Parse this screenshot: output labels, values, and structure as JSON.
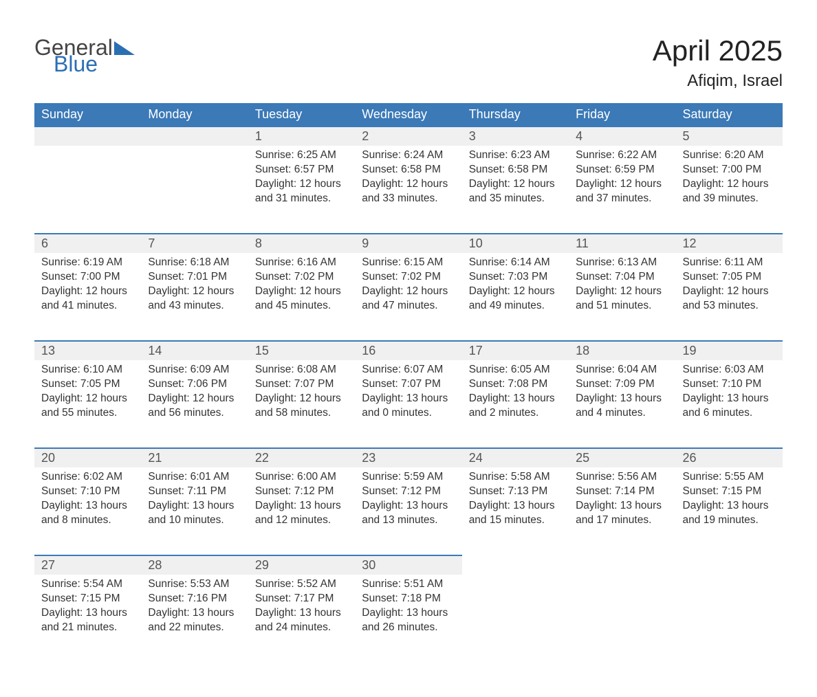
{
  "logo": {
    "text1": "General",
    "text2": "Blue",
    "color_general": "#444444",
    "color_blue": "#2b6fb3",
    "flag_color": "#2b6fb3"
  },
  "title": "April 2025",
  "subtitle": "Afiqim, Israel",
  "colors": {
    "header_bg": "#3b79b7",
    "header_text": "#ffffff",
    "daynum_bg": "#f0f0f0",
    "day_border": "#3b79b7",
    "body_text": "#333333",
    "page_bg": "#ffffff"
  },
  "fontsize": {
    "title": 42,
    "subtitle": 24,
    "dayheader": 18,
    "daynum": 18,
    "body": 15.5
  },
  "day_headers": [
    "Sunday",
    "Monday",
    "Tuesday",
    "Wednesday",
    "Thursday",
    "Friday",
    "Saturday"
  ],
  "weeks": [
    [
      null,
      null,
      {
        "n": "1",
        "sunrise": "6:25 AM",
        "sunset": "6:57 PM",
        "dl1": "12 hours",
        "dl2": "and 31 minutes."
      },
      {
        "n": "2",
        "sunrise": "6:24 AM",
        "sunset": "6:58 PM",
        "dl1": "12 hours",
        "dl2": "and 33 minutes."
      },
      {
        "n": "3",
        "sunrise": "6:23 AM",
        "sunset": "6:58 PM",
        "dl1": "12 hours",
        "dl2": "and 35 minutes."
      },
      {
        "n": "4",
        "sunrise": "6:22 AM",
        "sunset": "6:59 PM",
        "dl1": "12 hours",
        "dl2": "and 37 minutes."
      },
      {
        "n": "5",
        "sunrise": "6:20 AM",
        "sunset": "7:00 PM",
        "dl1": "12 hours",
        "dl2": "and 39 minutes."
      }
    ],
    [
      {
        "n": "6",
        "sunrise": "6:19 AM",
        "sunset": "7:00 PM",
        "dl1": "12 hours",
        "dl2": "and 41 minutes."
      },
      {
        "n": "7",
        "sunrise": "6:18 AM",
        "sunset": "7:01 PM",
        "dl1": "12 hours",
        "dl2": "and 43 minutes."
      },
      {
        "n": "8",
        "sunrise": "6:16 AM",
        "sunset": "7:02 PM",
        "dl1": "12 hours",
        "dl2": "and 45 minutes."
      },
      {
        "n": "9",
        "sunrise": "6:15 AM",
        "sunset": "7:02 PM",
        "dl1": "12 hours",
        "dl2": "and 47 minutes."
      },
      {
        "n": "10",
        "sunrise": "6:14 AM",
        "sunset": "7:03 PM",
        "dl1": "12 hours",
        "dl2": "and 49 minutes."
      },
      {
        "n": "11",
        "sunrise": "6:13 AM",
        "sunset": "7:04 PM",
        "dl1": "12 hours",
        "dl2": "and 51 minutes."
      },
      {
        "n": "12",
        "sunrise": "6:11 AM",
        "sunset": "7:05 PM",
        "dl1": "12 hours",
        "dl2": "and 53 minutes."
      }
    ],
    [
      {
        "n": "13",
        "sunrise": "6:10 AM",
        "sunset": "7:05 PM",
        "dl1": "12 hours",
        "dl2": "and 55 minutes."
      },
      {
        "n": "14",
        "sunrise": "6:09 AM",
        "sunset": "7:06 PM",
        "dl1": "12 hours",
        "dl2": "and 56 minutes."
      },
      {
        "n": "15",
        "sunrise": "6:08 AM",
        "sunset": "7:07 PM",
        "dl1": "12 hours",
        "dl2": "and 58 minutes."
      },
      {
        "n": "16",
        "sunrise": "6:07 AM",
        "sunset": "7:07 PM",
        "dl1": "13 hours",
        "dl2": "and 0 minutes."
      },
      {
        "n": "17",
        "sunrise": "6:05 AM",
        "sunset": "7:08 PM",
        "dl1": "13 hours",
        "dl2": "and 2 minutes."
      },
      {
        "n": "18",
        "sunrise": "6:04 AM",
        "sunset": "7:09 PM",
        "dl1": "13 hours",
        "dl2": "and 4 minutes."
      },
      {
        "n": "19",
        "sunrise": "6:03 AM",
        "sunset": "7:10 PM",
        "dl1": "13 hours",
        "dl2": "and 6 minutes."
      }
    ],
    [
      {
        "n": "20",
        "sunrise": "6:02 AM",
        "sunset": "7:10 PM",
        "dl1": "13 hours",
        "dl2": "and 8 minutes."
      },
      {
        "n": "21",
        "sunrise": "6:01 AM",
        "sunset": "7:11 PM",
        "dl1": "13 hours",
        "dl2": "and 10 minutes."
      },
      {
        "n": "22",
        "sunrise": "6:00 AM",
        "sunset": "7:12 PM",
        "dl1": "13 hours",
        "dl2": "and 12 minutes."
      },
      {
        "n": "23",
        "sunrise": "5:59 AM",
        "sunset": "7:12 PM",
        "dl1": "13 hours",
        "dl2": "and 13 minutes."
      },
      {
        "n": "24",
        "sunrise": "5:58 AM",
        "sunset": "7:13 PM",
        "dl1": "13 hours",
        "dl2": "and 15 minutes."
      },
      {
        "n": "25",
        "sunrise": "5:56 AM",
        "sunset": "7:14 PM",
        "dl1": "13 hours",
        "dl2": "and 17 minutes."
      },
      {
        "n": "26",
        "sunrise": "5:55 AM",
        "sunset": "7:15 PM",
        "dl1": "13 hours",
        "dl2": "and 19 minutes."
      }
    ],
    [
      {
        "n": "27",
        "sunrise": "5:54 AM",
        "sunset": "7:15 PM",
        "dl1": "13 hours",
        "dl2": "and 21 minutes."
      },
      {
        "n": "28",
        "sunrise": "5:53 AM",
        "sunset": "7:16 PM",
        "dl1": "13 hours",
        "dl2": "and 22 minutes."
      },
      {
        "n": "29",
        "sunrise": "5:52 AM",
        "sunset": "7:17 PM",
        "dl1": "13 hours",
        "dl2": "and 24 minutes."
      },
      {
        "n": "30",
        "sunrise": "5:51 AM",
        "sunset": "7:18 PM",
        "dl1": "13 hours",
        "dl2": "and 26 minutes."
      },
      null,
      null,
      null
    ]
  ],
  "labels": {
    "sunrise": "Sunrise: ",
    "sunset": "Sunset: ",
    "daylight": "Daylight: "
  }
}
